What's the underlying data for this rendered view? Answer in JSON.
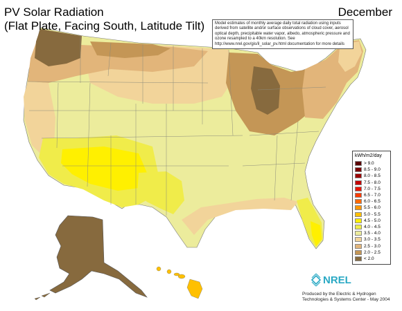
{
  "title": "PV Solar Radiation\n(Flat Plate, Facing South, Latitude Tilt)",
  "month": "December",
  "note": "Model estimates of monthly average daily total radiation using inputs derived from satellite and/or surface observations of cloud cover, aerosol optical depth, precipitable water vapor, albedo, atmospheric pressure and ozone resampled to a 40km resolution.  See http://www.nrel.gov/gis/il_solar_pv.html documentation for more details",
  "legend": {
    "title": "kWh/m2/day",
    "classes": [
      {
        "label": "> 9.0",
        "color": "#5a0000"
      },
      {
        "label": "8.5 - 9.0",
        "color": "#7a0000"
      },
      {
        "label": "8.0 - 8.5",
        "color": "#9c0000"
      },
      {
        "label": "7.5 - 8.0",
        "color": "#c40000"
      },
      {
        "label": "7.0 - 7.5",
        "color": "#e81400"
      },
      {
        "label": "6.5 - 7.0",
        "color": "#ff3c00"
      },
      {
        "label": "6.0 - 6.5",
        "color": "#ff6a00"
      },
      {
        "label": "5.5 - 6.0",
        "color": "#ff9600"
      },
      {
        "label": "5.0 - 5.5",
        "color": "#ffc000"
      },
      {
        "label": "4.5 - 5.0",
        "color": "#fff000"
      },
      {
        "label": "4.0 - 4.5",
        "color": "#f0ec4a"
      },
      {
        "label": "3.5 - 4.0",
        "color": "#ecec9c"
      },
      {
        "label": "3.0 - 3.5",
        "color": "#f2d49a"
      },
      {
        "label": "2.5 - 3.0",
        "color": "#e2b57a"
      },
      {
        "label": "2.0 - 2.5",
        "color": "#c49656"
      },
      {
        "label": "< 2.0",
        "color": "#876a3e"
      }
    ]
  },
  "logo_text": "NREL",
  "credit": "Produced by the Electric & Hydrogen\nTechnologies & Systems Center - May 2004",
  "regions": [
    {
      "id": "us",
      "color": "#ecec9c"
    },
    {
      "id": "plains-north",
      "color": "#f2d49a"
    },
    {
      "id": "northwest-band",
      "color": "#e2b57a"
    },
    {
      "id": "washington",
      "color": "#876a3e"
    },
    {
      "id": "montana-north",
      "color": "#c49656"
    },
    {
      "id": "great-lakes",
      "color": "#c49656"
    },
    {
      "id": "michigan",
      "color": "#876a3e"
    },
    {
      "id": "northeast",
      "color": "#e2b57a"
    },
    {
      "id": "new-england",
      "color": "#f2d49a"
    },
    {
      "id": "west-coast",
      "color": "#f2d49a"
    },
    {
      "id": "southwest-1",
      "color": "#f0ec4a"
    },
    {
      "id": "southwest-core",
      "color": "#fff000"
    },
    {
      "id": "texas-west",
      "color": "#f0ec4a"
    },
    {
      "id": "gulf-coast",
      "color": "#f2d49a"
    },
    {
      "id": "florida",
      "color": "#f0ec4a"
    },
    {
      "id": "florida-south",
      "color": "#fff000"
    },
    {
      "id": "alaska",
      "color": "#876a3e"
    },
    {
      "id": "hawaii",
      "color": "#ffc000"
    }
  ]
}
